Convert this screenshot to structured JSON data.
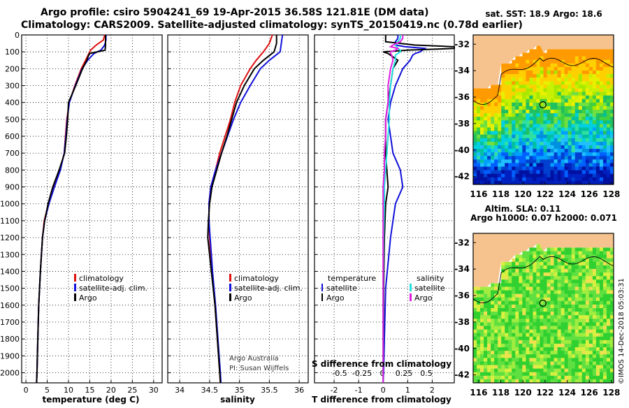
{
  "titles": {
    "line1": "Argo profile: csiro 5904241_69 19-Apr-2015 36.58S 121.81E (DM data)",
    "line2": "Climatology: CARS2009. Satellite-adjusted climatology: synTS_20150419.nc (0.78d earlier)"
  },
  "colors": {
    "climatology": "#e01010",
    "satellite": "#1010d8",
    "argo": "#000000",
    "satellite_s": "#22e0e0",
    "argo_s": "#e020e0",
    "land": "#f6c38e"
  },
  "chart_data": [
    {
      "type": "line",
      "xlabel": "temperature (deg C)",
      "ylabel": "",
      "xlim": [
        -1,
        32
      ],
      "ylim": [
        2060,
        0
      ],
      "x_ticks": [
        "0",
        "5",
        "10",
        "15",
        "20",
        "25",
        "30"
      ],
      "y_ticks": [
        "0",
        "100",
        "200",
        "300",
        "400",
        "500",
        "600",
        "700",
        "800",
        "900",
        "1000",
        "1100",
        "1200",
        "1300",
        "1400",
        "1500",
        "1600",
        "1700",
        "1800",
        "1900",
        "2000"
      ],
      "legend": [
        "climatology",
        "satellite-adj. clim.",
        "Argo"
      ],
      "depth": [
        0,
        30,
        60,
        90,
        110,
        150,
        200,
        300,
        400,
        500,
        600,
        700,
        800,
        900,
        1000,
        1100,
        1200,
        1400,
        1600,
        1800,
        2000,
        2060
      ],
      "series": [
        {
          "name": "climatology",
          "values": [
            18.5,
            18.2,
            16.5,
            15.2,
            14.8,
            14.0,
            13.0,
            11.5,
            10.2,
            9.6,
            9.3,
            9.0,
            8.0,
            6.6,
            5.3,
            4.3,
            3.9,
            3.4,
            3.0,
            2.8,
            2.6,
            2.5
          ]
        },
        {
          "name": "satellite-adj. clim.",
          "values": [
            18.8,
            18.8,
            18.5,
            17.6,
            16.0,
            14.5,
            13.2,
            11.6,
            10.2,
            9.7,
            9.4,
            9.0,
            8.1,
            6.7,
            5.4,
            4.4,
            3.9,
            3.4,
            3.0,
            2.8,
            2.6,
            2.5
          ]
        },
        {
          "name": "Argo",
          "values": [
            18.7,
            18.7,
            18.7,
            18.6,
            14.9,
            14.3,
            13.3,
            11.7,
            10.0,
            9.8,
            9.5,
            9.1,
            7.8,
            6.3,
            5.2,
            4.4,
            3.9,
            3.4,
            3.0,
            2.8,
            2.6,
            2.5
          ]
        }
      ]
    },
    {
      "type": "line",
      "xlabel": "salinity",
      "ylabel": "",
      "xlim": [
        33.8,
        36.15
      ],
      "ylim": [
        2060,
        0
      ],
      "x_ticks": [
        "34",
        "34.5",
        "35",
        "35.5",
        "36"
      ],
      "legend": [
        "climatology",
        "satellite-adj. clim.",
        "Argo"
      ],
      "annotations": [
        "Argo Australia",
        "PI: Susan Wijffels"
      ],
      "depth": [
        0,
        50,
        100,
        150,
        200,
        300,
        400,
        500,
        600,
        700,
        800,
        900,
        1000,
        1100,
        1200,
        1400,
        1600,
        1800,
        2000,
        2060
      ],
      "series": [
        {
          "name": "climatology",
          "values": [
            35.55,
            35.5,
            35.4,
            35.28,
            35.18,
            35.02,
            34.92,
            34.85,
            34.76,
            34.67,
            34.6,
            34.52,
            34.49,
            34.49,
            34.5,
            34.54,
            34.59,
            34.63,
            34.67,
            34.68
          ]
        },
        {
          "name": "satellite-adj. clim.",
          "values": [
            35.72,
            35.7,
            35.68,
            35.5,
            35.35,
            35.18,
            35.02,
            34.9,
            34.8,
            34.7,
            34.6,
            34.52,
            34.49,
            34.49,
            34.51,
            34.55,
            34.6,
            34.64,
            34.68,
            34.69
          ]
        },
        {
          "name": "Argo",
          "values": [
            35.62,
            35.62,
            35.58,
            35.4,
            35.25,
            35.08,
            34.95,
            34.87,
            34.79,
            34.7,
            34.62,
            34.54,
            34.5,
            34.48,
            34.47,
            34.53,
            34.59,
            34.63,
            34.67,
            34.68
          ]
        }
      ]
    },
    {
      "type": "line",
      "xlabel": "T difference from climatology",
      "ylabel": "",
      "xlim": [
        -2.8,
        2.9
      ],
      "ylim": [
        2060,
        0
      ],
      "x_ticks": [
        "-2",
        "-1",
        "0",
        "1",
        "2"
      ],
      "secondary_axis": {
        "label": "S difference from climatology",
        "ticks": [
          "-0.5",
          "-0.25",
          "0",
          "0.25",
          "0.5"
        ]
      },
      "legend_titles": [
        "temperature",
        "salinity"
      ],
      "legend": [
        "satellite",
        "Argo",
        "satellite",
        "Argo"
      ],
      "depth": [
        0,
        20,
        40,
        60,
        70,
        80,
        90,
        100,
        110,
        120,
        150,
        200,
        300,
        400,
        500,
        600,
        700,
        800,
        900,
        1000,
        1200,
        1500,
        1800,
        2000,
        2060
      ],
      "series": [
        {
          "name": "temperature satellite",
          "values": [
            0.6,
            0.6,
            0.5,
            0.5,
            0.9,
            1.7,
            1.6,
            1.5,
            1.3,
            1.2,
            1.1,
            0.8,
            0.5,
            0.3,
            0.2,
            0.3,
            0.4,
            0.7,
            0.8,
            0.5,
            0.3,
            0.1,
            0.05,
            0.02,
            0.0
          ]
        },
        {
          "name": "temperature Argo",
          "values": [
            0.1,
            0.1,
            0.1,
            1.3,
            2.9,
            2.9,
            1.0,
            0.0,
            0.2,
            0.3,
            0.6,
            0.4,
            0.3,
            0.2,
            0.1,
            0.1,
            0.1,
            0.15,
            0.2,
            0.1,
            0.05,
            0.02,
            0.01,
            0.0,
            0.0
          ]
        },
        {
          "name": "salinity satellite",
          "values": [
            0.7,
            0.7,
            0.6,
            0.5,
            0.55,
            0.6,
            0.7,
            0.7,
            0.6,
            0.5,
            0.5,
            0.4,
            0.3,
            0.25,
            0.25,
            0.2,
            0.15,
            0.1,
            0.05,
            0.05,
            0.02,
            0.0,
            0.0,
            0.0,
            0.0
          ]
        },
        {
          "name": "salinity Argo",
          "values": [
            0.8,
            0.8,
            0.7,
            0.4,
            0.3,
            0.6,
            0.5,
            0.3,
            0.3,
            0.35,
            0.4,
            0.3,
            0.2,
            0.2,
            0.1,
            0.1,
            0.05,
            0.05,
            0.0,
            0.0,
            0.0,
            0.0,
            0.0,
            0.0,
            0.0
          ]
        }
      ]
    },
    {
      "type": "heatmap",
      "title": "sat. SST: 18.9 Argo: 18.6",
      "xlim": [
        115.5,
        128.2
      ],
      "ylim": [
        -42.6,
        -31.3
      ],
      "x_ticks": [
        "116",
        "118",
        "120",
        "122",
        "124",
        "126",
        "128"
      ],
      "y_ticks": [
        "-32",
        "-34",
        "-36",
        "-38",
        "-40",
        "-42"
      ],
      "marker": {
        "lon": 121.81,
        "lat": -36.58
      }
    },
    {
      "type": "heatmap",
      "title": "Altim. SLA: 0.11",
      "subtitle": "Argo h1000: 0.07 h2000: 0.071",
      "xlim": [
        115.5,
        128.2
      ],
      "ylim": [
        -42.6,
        -31.3
      ],
      "x_ticks": [
        "116",
        "118",
        "120",
        "122",
        "124",
        "126",
        "128"
      ],
      "y_ticks": [
        "-32",
        "-34",
        "-36",
        "-38",
        "-40",
        "-42"
      ],
      "marker": {
        "lon": 121.81,
        "lat": -36.58
      }
    }
  ],
  "watermark": "©IMOS 14-Dec-2018 05:03:31"
}
